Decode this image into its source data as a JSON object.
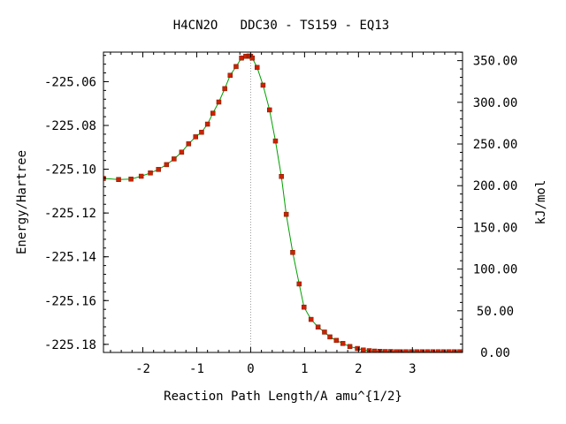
{
  "chart_data": {
    "type": "line",
    "title": "H4CN2O   DDC30 - TS159 - EQ13",
    "xlabel": "Reaction Path Length/A amu^{1/2}",
    "ylabel": "Energy/Hartree",
    "y2label": "kJ/mol",
    "xlim": [
      -2.73,
      3.93
    ],
    "ylim": [
      -225.1837,
      -225.0465
    ],
    "y2lim": [
      0,
      360.2
    ],
    "xticks": [
      -2,
      -1,
      0,
      1,
      2,
      3
    ],
    "xtick_labels": [
      "-2",
      "-1",
      "0",
      "1",
      "2",
      "3"
    ],
    "yticks": [
      -225.06,
      -225.08,
      -225.1,
      -225.12,
      -225.14,
      -225.16,
      -225.18
    ],
    "ytick_labels": [
      "-225.06",
      "-225.08",
      "-225.10",
      "-225.12",
      "-225.14",
      "-225.16",
      "-225.18"
    ],
    "y2ticks": [
      350,
      300,
      250,
      200,
      150,
      100,
      50,
      0
    ],
    "y2tick_labels": [
      "350.00",
      "300.00",
      "250.00",
      "200.00",
      "150.00",
      "100.00",
      "50.00",
      "0.00"
    ],
    "ts_marker_x": 0.0,
    "grid": false,
    "line_color": "#00a000",
    "marker_color": "#cc2200",
    "series": [
      {
        "x": [
          -2.73,
          -2.45,
          -2.22,
          -2.03,
          -1.86,
          -1.71,
          -1.56,
          -1.42,
          -1.28,
          -1.15,
          -1.02,
          -0.91,
          -0.8,
          -0.7,
          -0.59,
          -0.48,
          -0.38,
          -0.27,
          -0.17,
          -0.09,
          -0.03,
          0.0,
          0.03,
          0.12,
          0.23,
          0.35,
          0.46,
          0.57,
          0.66,
          0.78,
          0.9,
          0.99,
          1.12,
          1.25,
          1.37,
          1.47,
          1.59,
          1.71,
          1.84,
          1.98,
          2.09,
          2.2,
          2.3,
          2.4,
          2.5,
          2.6,
          2.7,
          2.78,
          2.88,
          2.98,
          3.08,
          3.18,
          3.28,
          3.38,
          3.48,
          3.58,
          3.68,
          3.78,
          3.88,
          3.93
        ],
        "y": [
          -225.1042,
          -225.1047,
          -225.1045,
          -225.1032,
          -225.1017,
          -225.1001,
          -225.0979,
          -225.0953,
          -225.0922,
          -225.0884,
          -225.0852,
          -225.0831,
          -225.0794,
          -225.0744,
          -225.0693,
          -225.0632,
          -225.0571,
          -225.0531,
          -225.0492,
          -225.0484,
          -225.0483,
          -225.0484,
          -225.0492,
          -225.0535,
          -225.0616,
          -225.0729,
          -225.0871,
          -225.1033,
          -225.1206,
          -225.138,
          -225.1524,
          -225.163,
          -225.1686,
          -225.1721,
          -225.1744,
          -225.1766,
          -225.1782,
          -225.1796,
          -225.181,
          -225.1819,
          -225.1826,
          -225.1829,
          -225.1831,
          -225.1832,
          -225.1833,
          -225.1833,
          -225.1834,
          -225.1834,
          -225.1834,
          -225.1834,
          -225.1834,
          -225.1834,
          -225.1834,
          -225.1834,
          -225.1834,
          -225.1834,
          -225.1834,
          -225.1834,
          -225.1834,
          -225.1834
        ]
      }
    ]
  }
}
